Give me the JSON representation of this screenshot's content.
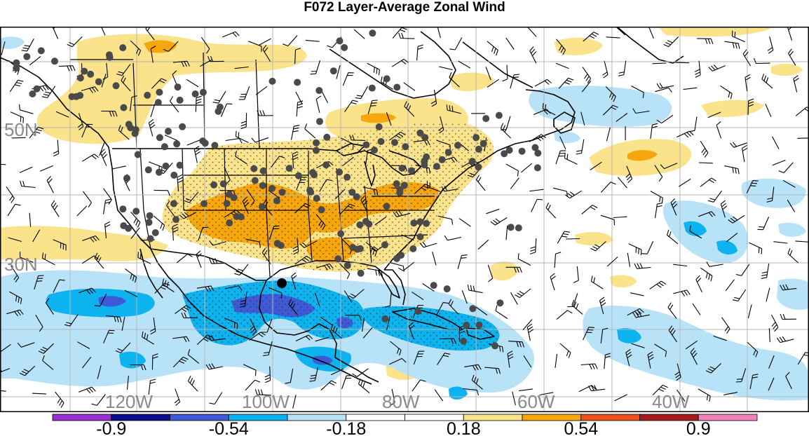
{
  "title": "F072 Layer-Average Zonal Wind",
  "map": {
    "lat_labels": [
      {
        "text": "50N",
        "lat": 50
      },
      {
        "text": "30N",
        "lat": 30
      }
    ],
    "lon_labels": [
      {
        "text": "120W",
        "lon": -120
      },
      {
        "text": "100W",
        "lon": -100
      },
      {
        "text": "80W",
        "lon": -80
      },
      {
        "text": "60W",
        "lon": -60
      },
      {
        "text": "40W",
        "lon": -40
      }
    ]
  },
  "colors": {
    "pos_light": "#fbe38c",
    "pos_mid": "#f7a70b",
    "neg_light": "#b7e2f8",
    "neg_mid": "#0db3ef",
    "neg_strong": "#3f5ad6",
    "station": "#4a4a4a",
    "grid": "#b5b5b5",
    "coast": "#000000"
  },
  "colorbar": {
    "swatches": [
      "#9a31d7",
      "#0b0f8e",
      "#3f5ad6",
      "#0db3ef",
      "#b7e2f8",
      "#ffffff",
      "#ffffff",
      "#fbe38c",
      "#f7a70b",
      "#f0501d",
      "#a81b1b",
      "#f083b8"
    ],
    "labels": [
      "-0.9",
      "-0.54",
      "-0.18",
      "0.18",
      "0.54",
      "0.9"
    ]
  }
}
